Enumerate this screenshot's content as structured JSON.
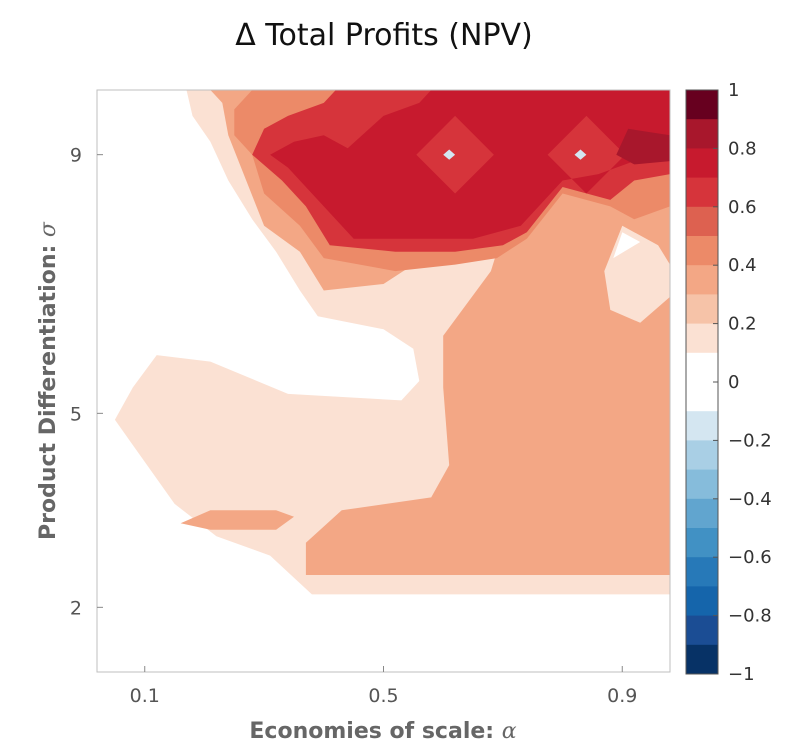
{
  "chart_data": {
    "type": "contour",
    "title": "Δ Total Profits (NPV)",
    "xlabel": "Economies of scale: ",
    "xlabel_symbol": "α",
    "ylabel": "Product Differentiation: ",
    "ylabel_symbol": "σ",
    "x_ticks": [
      0.1,
      0.5,
      0.9
    ],
    "x_tick_labels": [
      "0.1",
      "0.5",
      "0.9"
    ],
    "y_ticks": [
      2,
      5,
      9
    ],
    "y_tick_labels": [
      "2",
      "5",
      "9"
    ],
    "xlim": [
      0.02,
      0.98
    ],
    "ylim": [
      1.0,
      10.0
    ],
    "grid": false,
    "legend": "none",
    "colorbar": {
      "position": "right",
      "min": -1,
      "max": 1,
      "step": 0.1,
      "tick_values": [
        1,
        0.8,
        0.6,
        0.4,
        0.2,
        0,
        -0.2,
        -0.4,
        -0.6,
        -0.8,
        -1
      ],
      "tick_labels": [
        "1",
        "0.8",
        "0.6",
        "0.4",
        "0.2",
        "0",
        "−0.2",
        "−0.4",
        "−0.6",
        "−0.8",
        "−1"
      ],
      "colors_high_to_low": [
        "#67001f",
        "#a8172c",
        "#c71a2e",
        "#d6343b",
        "#dd6150",
        "#ec8a68",
        "#f3a785",
        "#f6c3a8",
        "#fbe1d3",
        "#ffffff",
        "#ffffff",
        "#d4e6f1",
        "#a9cfe5",
        "#86bcdb",
        "#61a5cf",
        "#4191c4",
        "#2779b8",
        "#1565ab",
        "#1b4d94",
        "#073266"
      ]
    },
    "levels": [
      {
        "range": [
          0.1,
          0.2
        ],
        "color": "#fbe1d3",
        "regions": [
          {
            "kind": "fill",
            "points": [
              [
                0.08,
                5.4
              ],
              [
                0.12,
                5.9
              ],
              [
                0.21,
                5.8
              ],
              [
                0.34,
                5.3
              ],
              [
                0.53,
                5.2
              ],
              [
                0.56,
                5.5
              ],
              [
                0.55,
                6.0
              ],
              [
                0.5,
                6.3
              ],
              [
                0.39,
                6.5
              ],
              [
                0.36,
                6.9
              ],
              [
                0.32,
                7.5
              ],
              [
                0.28,
                8.0
              ],
              [
                0.24,
                8.6
              ],
              [
                0.21,
                9.2
              ],
              [
                0.18,
                9.6
              ],
              [
                0.17,
                10.0
              ],
              [
                0.98,
                10.0
              ],
              [
                0.98,
                2.2
              ],
              [
                0.38,
                2.2
              ],
              [
                0.31,
                2.8
              ],
              [
                0.22,
                3.1
              ],
              [
                0.15,
                3.6
              ],
              [
                0.05,
                4.9
              ]
            ]
          },
          {
            "kind": "hole",
            "points": [
              [
                0.61,
                9.35
              ],
              [
                0.57,
                9.0
              ],
              [
                0.61,
                8.65
              ],
              [
                0.65,
                9.0
              ]
            ]
          },
          {
            "kind": "hole",
            "points": [
              [
                0.83,
                9.35
              ],
              [
                0.79,
                9.0
              ],
              [
                0.83,
                8.65
              ],
              [
                0.87,
                9.0
              ]
            ]
          },
          {
            "kind": "hole",
            "points": [
              [
                0.885,
                7.4
              ],
              [
                0.9,
                7.8
              ],
              [
                0.93,
                7.65
              ]
            ]
          }
        ]
      },
      {
        "range": [
          0.2,
          0.3
        ],
        "color": "#f3a785",
        "regions": [
          {
            "kind": "fill",
            "points": [
              [
                0.21,
                10.0
              ],
              [
                0.98,
                10.0
              ],
              [
                0.98,
                2.5
              ],
              [
                0.37,
                2.5
              ],
              [
                0.37,
                3.0
              ],
              [
                0.43,
                3.5
              ],
              [
                0.58,
                3.7
              ],
              [
                0.61,
                4.2
              ],
              [
                0.6,
                5.4
              ],
              [
                0.6,
                6.2
              ],
              [
                0.68,
                7.2
              ],
              [
                0.69,
                7.5
              ],
              [
                0.62,
                7.8
              ],
              [
                0.57,
                7.8
              ],
              [
                0.55,
                7.3
              ],
              [
                0.5,
                7.0
              ],
              [
                0.4,
                6.9
              ],
              [
                0.36,
                7.5
              ],
              [
                0.3,
                7.9
              ],
              [
                0.27,
                8.6
              ],
              [
                0.24,
                9.3
              ],
              [
                0.23,
                9.8
              ]
            ]
          },
          {
            "kind": "fill",
            "points": [
              [
                0.16,
                3.3
              ],
              [
                0.21,
                3.5
              ],
              [
                0.32,
                3.5
              ],
              [
                0.35,
                3.4
              ],
              [
                0.32,
                3.2
              ],
              [
                0.21,
                3.2
              ]
            ]
          },
          {
            "kind": "hole",
            "points": [
              [
                0.62,
                9.55
              ],
              [
                0.56,
                9.0
              ],
              [
                0.62,
                8.45
              ],
              [
                0.68,
                9.0
              ]
            ]
          },
          {
            "kind": "hole",
            "points": [
              [
                0.84,
                9.55
              ],
              [
                0.78,
                9.0
              ],
              [
                0.84,
                8.45
              ],
              [
                0.9,
                9.0
              ]
            ]
          },
          {
            "kind": "hole",
            "points": [
              [
                0.87,
                7.2
              ],
              [
                0.9,
                7.9
              ],
              [
                0.96,
                7.6
              ],
              [
                0.98,
                7.3
              ],
              [
                0.98,
                6.8
              ],
              [
                0.93,
                6.4
              ],
              [
                0.88,
                6.6
              ]
            ]
          }
        ]
      },
      {
        "range": [
          0.3,
          0.4
        ],
        "color": "#ec8a68",
        "regions": [
          {
            "kind": "fill",
            "points": [
              [
                0.28,
                10.0
              ],
              [
                0.98,
                10.0
              ],
              [
                0.98,
                8.2
              ],
              [
                0.92,
                8.0
              ],
              [
                0.88,
                8.2
              ],
              [
                0.8,
                8.4
              ],
              [
                0.74,
                7.7
              ],
              [
                0.69,
                7.4
              ],
              [
                0.62,
                7.3
              ],
              [
                0.52,
                7.2
              ],
              [
                0.4,
                7.4
              ],
              [
                0.36,
                7.9
              ],
              [
                0.3,
                8.4
              ],
              [
                0.28,
                9.0
              ],
              [
                0.25,
                9.3
              ],
              [
                0.25,
                9.7
              ]
            ]
          }
        ]
      },
      {
        "range": [
          0.4,
          0.6
        ],
        "color": "#d6343b",
        "regions": [
          {
            "kind": "fill",
            "points": [
              [
                0.42,
                10.0
              ],
              [
                0.98,
                10.0
              ],
              [
                0.98,
                8.7
              ],
              [
                0.92,
                8.6
              ],
              [
                0.88,
                8.3
              ],
              [
                0.8,
                8.5
              ],
              [
                0.74,
                7.8
              ],
              [
                0.7,
                7.6
              ],
              [
                0.62,
                7.5
              ],
              [
                0.52,
                7.5
              ],
              [
                0.41,
                7.6
              ],
              [
                0.37,
                8.2
              ],
              [
                0.33,
                8.6
              ],
              [
                0.28,
                9.0
              ],
              [
                0.3,
                9.4
              ],
              [
                0.34,
                9.6
              ],
              [
                0.4,
                9.8
              ]
            ]
          }
        ]
      },
      {
        "range": [
          0.6,
          0.8
        ],
        "color": "#c71a2e",
        "regions": [
          {
            "kind": "fill",
            "points": [
              [
                0.58,
                10.0
              ],
              [
                0.98,
                10.0
              ],
              [
                0.98,
                9.0
              ],
              [
                0.92,
                8.9
              ],
              [
                0.86,
                8.7
              ],
              [
                0.8,
                8.6
              ],
              [
                0.73,
                7.9
              ],
              [
                0.65,
                7.7
              ],
              [
                0.55,
                7.7
              ],
              [
                0.45,
                7.7
              ],
              [
                0.39,
                8.3
              ],
              [
                0.34,
                8.8
              ],
              [
                0.31,
                9.0
              ],
              [
                0.35,
                9.2
              ],
              [
                0.4,
                9.3
              ],
              [
                0.44,
                9.1
              ],
              [
                0.5,
                9.6
              ],
              [
                0.56,
                9.8
              ]
            ]
          },
          {
            "kind": "hole",
            "points": [
              [
                0.62,
                9.6
              ],
              [
                0.555,
                9.0
              ],
              [
                0.62,
                8.4
              ],
              [
                0.685,
                9.0
              ]
            ]
          },
          {
            "kind": "hole",
            "points": [
              [
                0.84,
                9.6
              ],
              [
                0.775,
                9.0
              ],
              [
                0.84,
                8.4
              ],
              [
                0.905,
                9.0
              ]
            ]
          }
        ]
      },
      {
        "range": [
          0.8,
          0.9
        ],
        "color": "#a8172c",
        "regions": [
          {
            "kind": "fill",
            "points": [
              [
                0.91,
                9.4
              ],
              [
                0.98,
                9.3
              ],
              [
                0.98,
                8.9
              ],
              [
                0.92,
                8.85
              ],
              [
                0.89,
                9.0
              ]
            ]
          }
        ]
      },
      {
        "range": [
          -0.2,
          -0.1
        ],
        "color": "#d4e6f1",
        "regions": [
          {
            "kind": "fill",
            "points": [
              [
                0.61,
                9.08
              ],
              [
                0.6,
                9.0
              ],
              [
                0.61,
                8.92
              ],
              [
                0.62,
                9.0
              ]
            ]
          },
          {
            "kind": "fill",
            "points": [
              [
                0.83,
                9.08
              ],
              [
                0.82,
                9.0
              ],
              [
                0.83,
                8.92
              ],
              [
                0.84,
                9.0
              ]
            ]
          }
        ]
      }
    ]
  }
}
